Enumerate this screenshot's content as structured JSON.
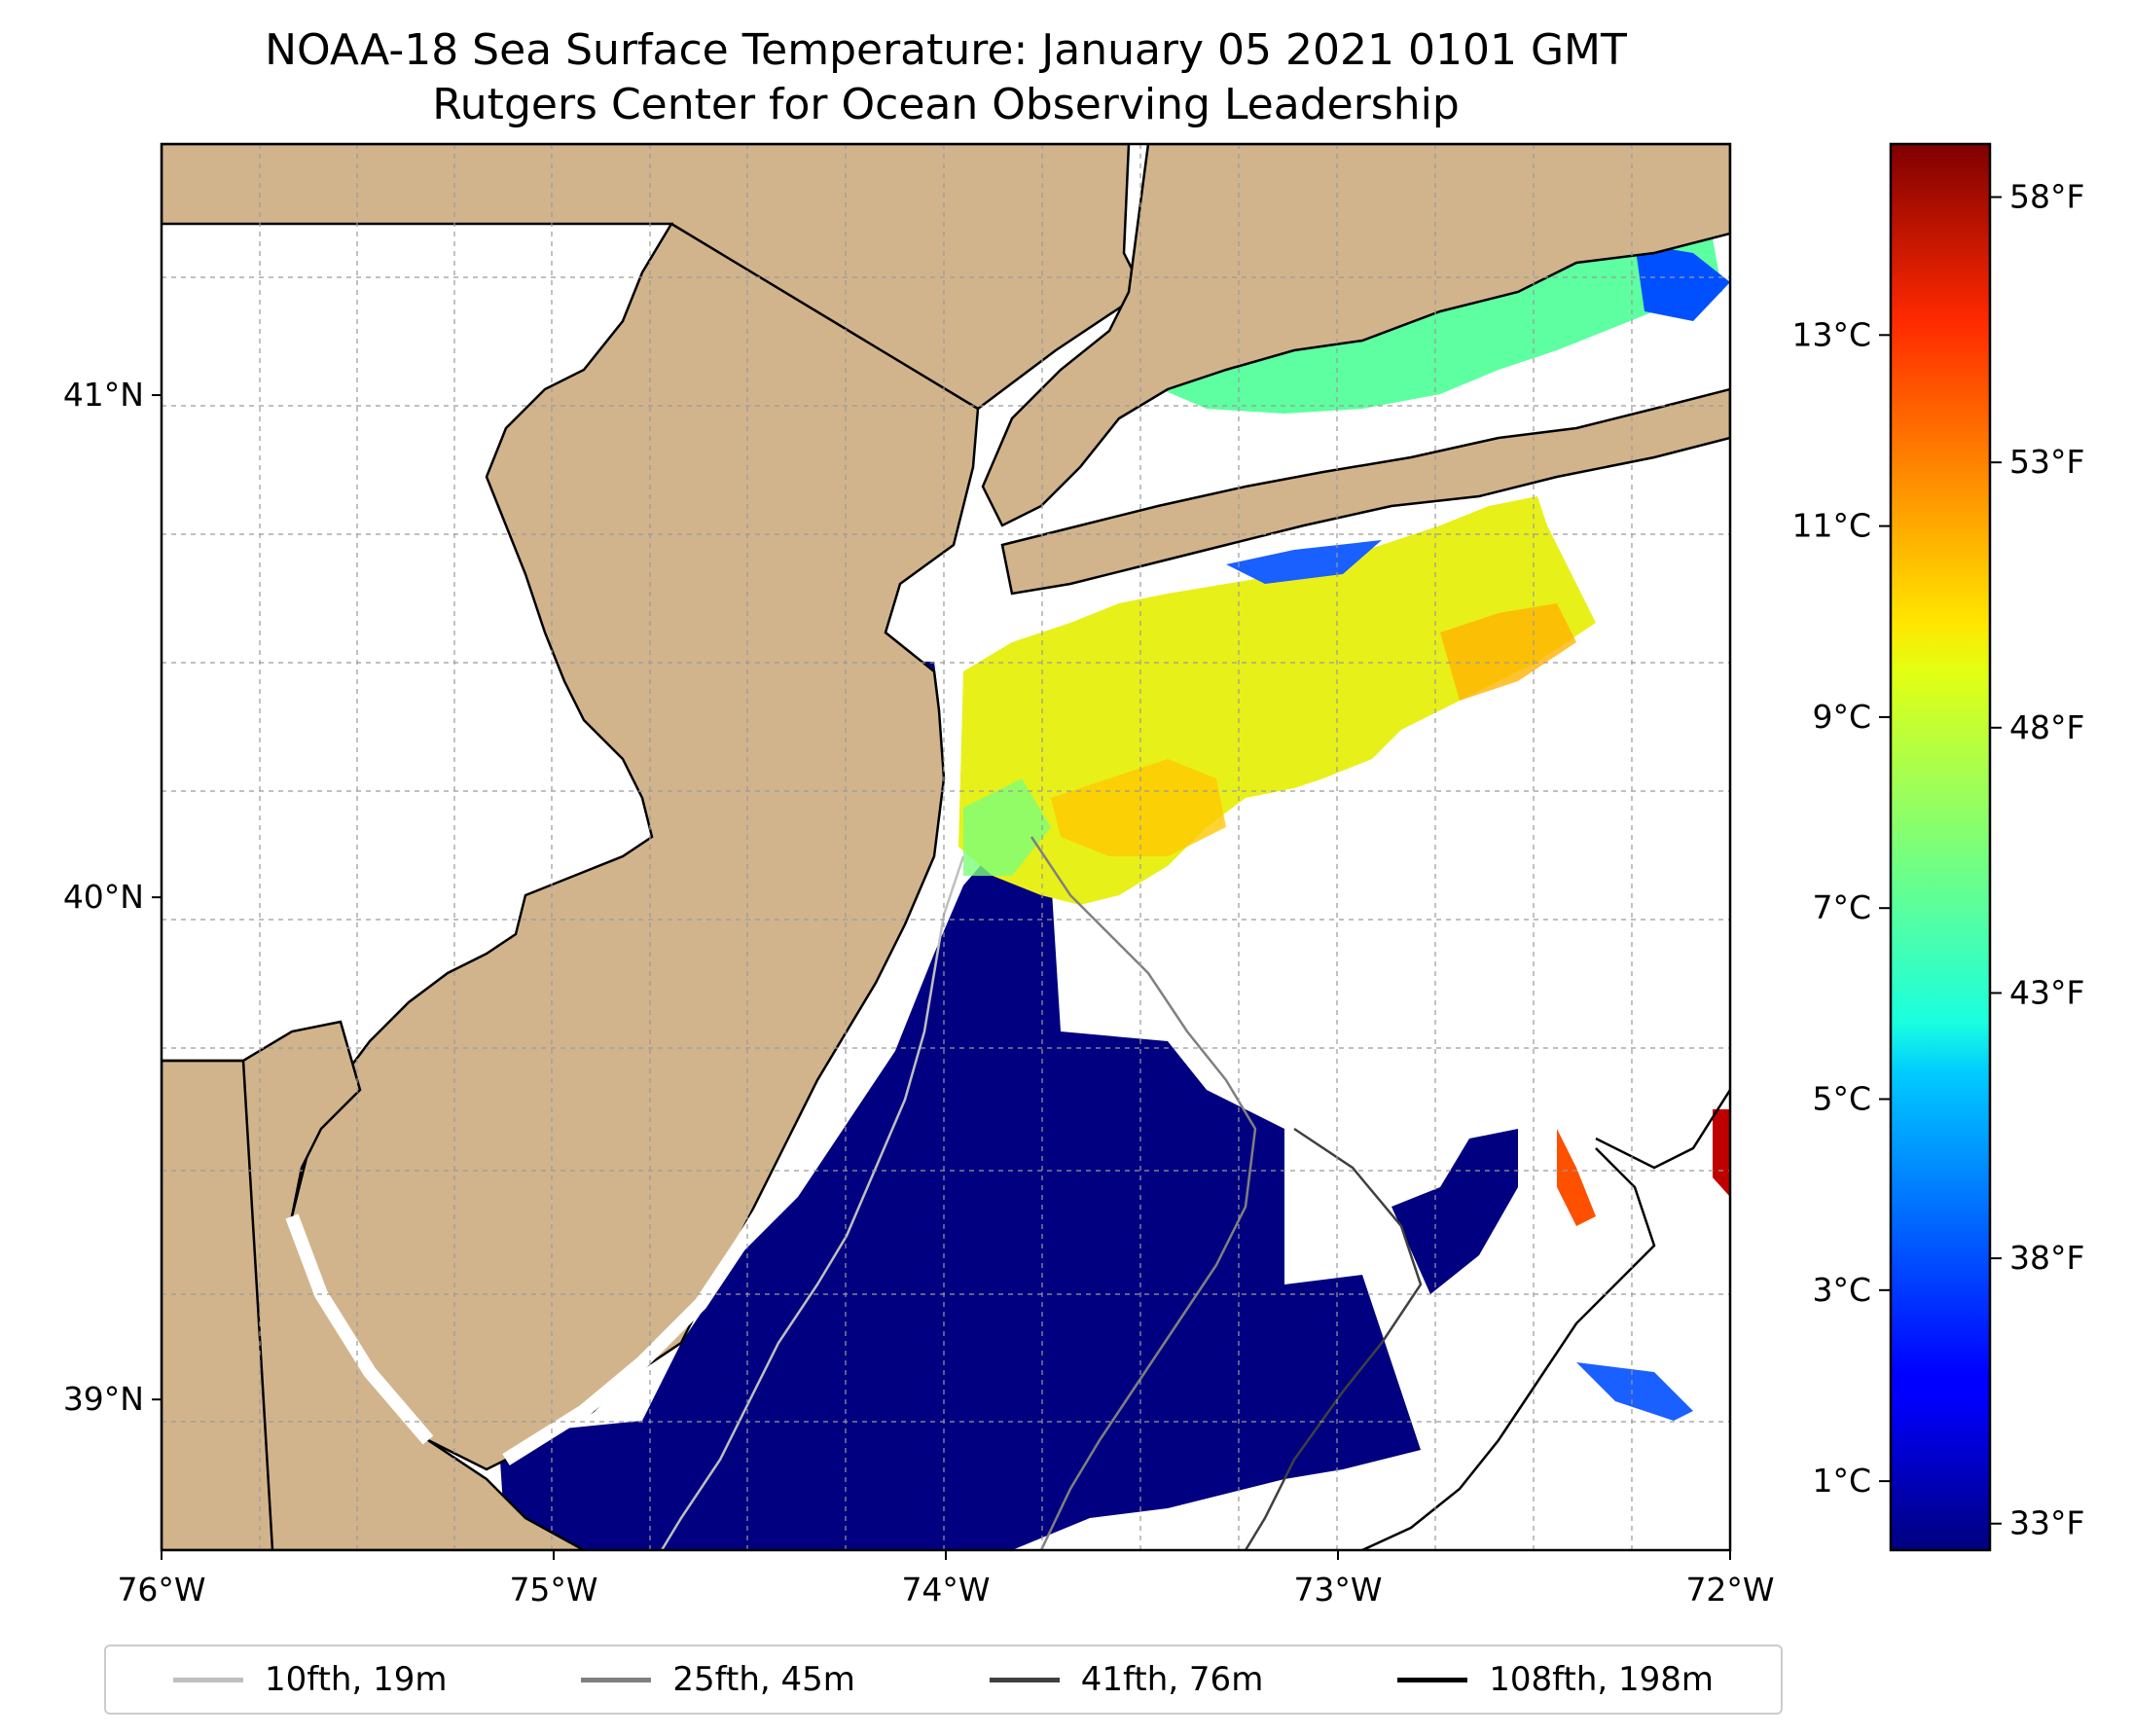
{
  "title": {
    "line1": "NOAA-18 Sea Surface Temperature: January 05 2021 0101 GMT",
    "line2": "Rutgers Center for Ocean Observing Leadership"
  },
  "map": {
    "lon_range": [
      -76,
      -72
    ],
    "lat_range": [
      38.7,
      41.5
    ],
    "land_color": "#d2b48c",
    "x_ticks": [
      {
        "value": -76,
        "label": "76°W"
      },
      {
        "value": -75,
        "label": "75°W"
      },
      {
        "value": -74,
        "label": "74°W"
      },
      {
        "value": -73,
        "label": "73°W"
      },
      {
        "value": -72,
        "label": "72°W"
      }
    ],
    "y_ticks": [
      {
        "value": 39,
        "label": "39°N"
      },
      {
        "value": 40,
        "label": "40°N"
      },
      {
        "value": 41,
        "label": "41°N"
      }
    ],
    "gridlines": true
  },
  "colorbar": {
    "cmap": "jet",
    "celsius_ticks": [
      {
        "value": 1,
        "label": "1°C"
      },
      {
        "value": 3,
        "label": "3°C"
      },
      {
        "value": 5,
        "label": "5°C"
      },
      {
        "value": 7,
        "label": "7°C"
      },
      {
        "value": 9,
        "label": "9°C"
      },
      {
        "value": 11,
        "label": "11°C"
      },
      {
        "value": 13,
        "label": "13°C"
      }
    ],
    "fahrenheit_ticks": [
      {
        "value": 33,
        "label": "33°F"
      },
      {
        "value": 38,
        "label": "38°F"
      },
      {
        "value": 43,
        "label": "43°F"
      },
      {
        "value": 48,
        "label": "48°F"
      },
      {
        "value": 53,
        "label": "53°F"
      },
      {
        "value": 58,
        "label": "58°F"
      }
    ]
  },
  "legend": {
    "placement": "bottom",
    "items": [
      {
        "label": "10fth, 19m",
        "color": "#bfbfbf"
      },
      {
        "label": "25fth, 45m",
        "color": "#808080"
      },
      {
        "label": "41fth, 76m",
        "color": "#404040"
      },
      {
        "label": "108fth, 198m",
        "color": "#000000"
      }
    ]
  }
}
